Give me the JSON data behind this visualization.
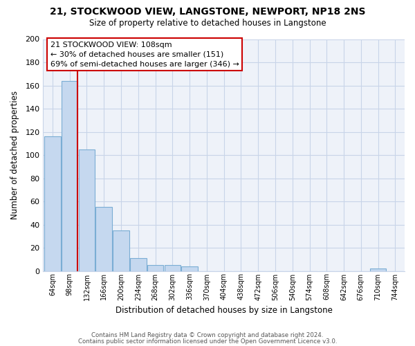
{
  "title": "21, STOCKWOOD VIEW, LANGSTONE, NEWPORT, NP18 2NS",
  "subtitle": "Size of property relative to detached houses in Langstone",
  "xlabel": "Distribution of detached houses by size in Langstone",
  "ylabel": "Number of detached properties",
  "bin_labels": [
    "64sqm",
    "98sqm",
    "132sqm",
    "166sqm",
    "200sqm",
    "234sqm",
    "268sqm",
    "302sqm",
    "336sqm",
    "370sqm",
    "404sqm",
    "438sqm",
    "472sqm",
    "506sqm",
    "540sqm",
    "574sqm",
    "608sqm",
    "642sqm",
    "676sqm",
    "710sqm",
    "744sqm"
  ],
  "bar_values": [
    116,
    164,
    105,
    55,
    35,
    11,
    5,
    5,
    4,
    0,
    0,
    0,
    0,
    0,
    0,
    0,
    0,
    0,
    0,
    2,
    0
  ],
  "bar_color": "#c5d8ef",
  "bar_edge_color": "#7aadd4",
  "vline_color": "#cc0000",
  "annotation_title": "21 STOCKWOOD VIEW: 108sqm",
  "annotation_line1": "← 30% of detached houses are smaller (151)",
  "annotation_line2": "69% of semi-detached houses are larger (346) →",
  "annotation_box_color": "#ffffff",
  "annotation_box_edge": "#cc0000",
  "ylim": [
    0,
    200
  ],
  "yticks": [
    0,
    20,
    40,
    60,
    80,
    100,
    120,
    140,
    160,
    180,
    200
  ],
  "footer1": "Contains HM Land Registry data © Crown copyright and database right 2024.",
  "footer2": "Contains public sector information licensed under the Open Government Licence v3.0.",
  "bg_color": "#f0f4fa",
  "plot_bg_color": "#eef2f9",
  "grid_color": "#c8d4e8"
}
